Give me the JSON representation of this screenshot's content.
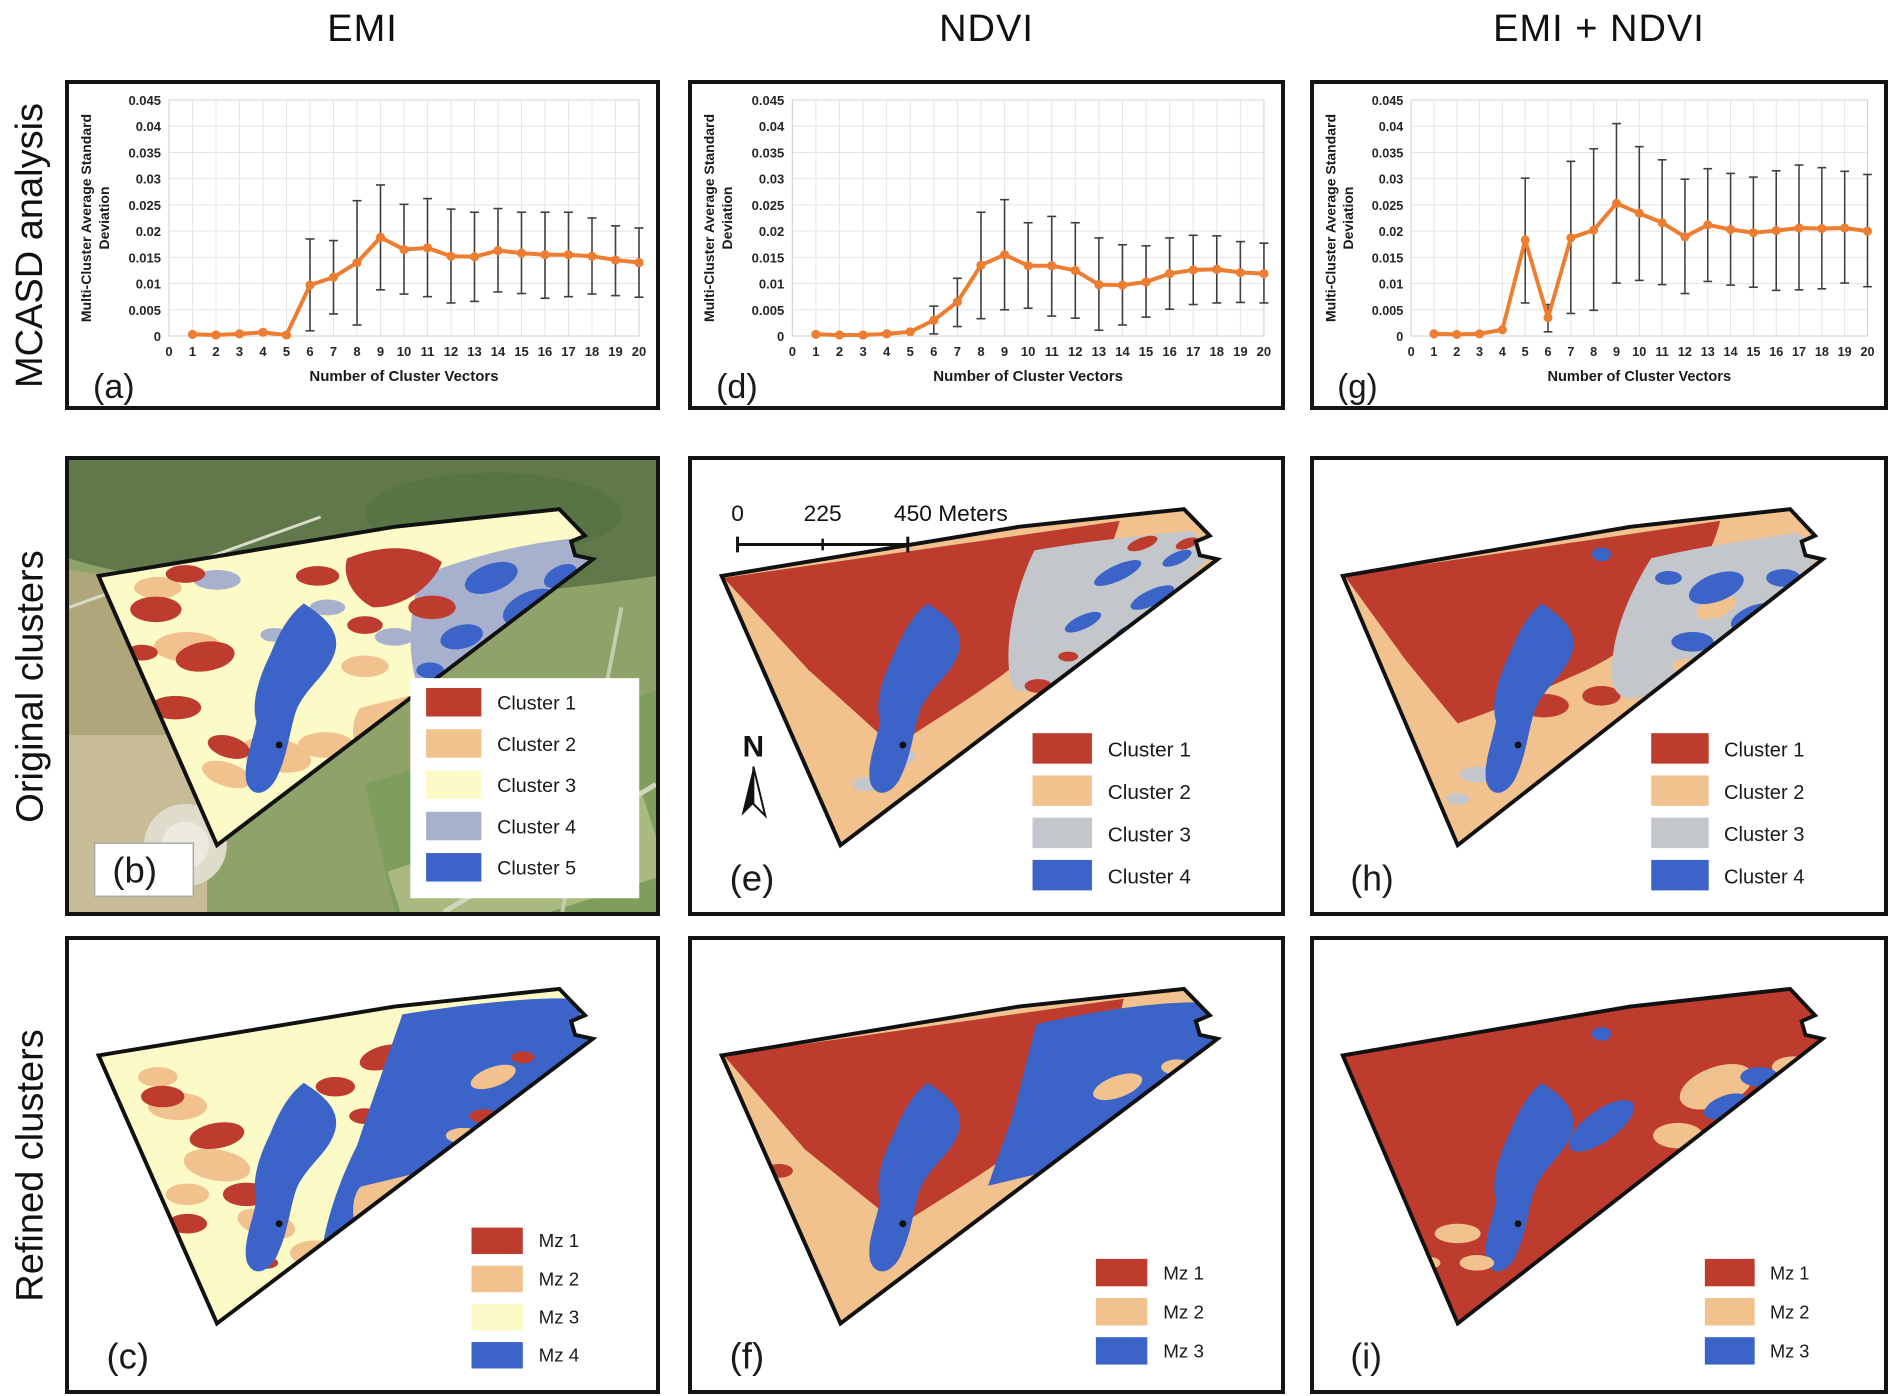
{
  "figure": {
    "column_titles": [
      "EMI",
      "NDVI",
      "EMI + NDVI"
    ],
    "row_titles": [
      "MCASD analysis",
      "Original clusters",
      "Refined clusters"
    ]
  },
  "colors": {
    "line_orange": "#ED7D31",
    "error_bar": "#3F3F3F",
    "cluster_red": "#BD3C2D",
    "cluster_tan": "#F1C18E",
    "cluster_yellow": "#FCFAC6",
    "cluster_slate": "#A7B1CE",
    "cluster_gray": "#C3C7CC",
    "cluster_blue": "#3C64C8",
    "panel_border": "#1A1A1A"
  },
  "chart_data": [
    {
      "type": "line",
      "label": "(a)",
      "column": "EMI",
      "xlabel": "Number of Cluster Vectors",
      "ylabel_lines": [
        "Multi-Cluster Average Standard",
        "Deviation"
      ],
      "xlim": [
        0,
        20
      ],
      "ylim": [
        0,
        0.045
      ],
      "ytick_step": 0.005,
      "xtick_step": 1,
      "grid": true,
      "x": [
        1,
        2,
        3,
        4,
        5,
        6,
        7,
        8,
        9,
        10,
        11,
        12,
        13,
        14,
        15,
        16,
        17,
        18,
        19,
        20
      ],
      "values": [
        0.0003,
        0.0002,
        0.0004,
        0.0007,
        0.0002,
        0.0097,
        0.0112,
        0.014,
        0.0188,
        0.0165,
        0.0168,
        0.0152,
        0.0151,
        0.0163,
        0.0158,
        0.0155,
        0.0155,
        0.0152,
        0.0145,
        0.014
      ],
      "err_low": [
        null,
        null,
        null,
        null,
        null,
        0.001,
        0.0042,
        0.0021,
        0.0088,
        0.008,
        0.0075,
        0.0063,
        0.0066,
        0.0084,
        0.0081,
        0.0072,
        0.0075,
        0.008,
        0.0077,
        0.0074
      ],
      "err_high": [
        null,
        null,
        null,
        null,
        null,
        0.0185,
        0.0182,
        0.0258,
        0.0288,
        0.0251,
        0.0262,
        0.0242,
        0.0236,
        0.0243,
        0.0236,
        0.0236,
        0.0236,
        0.0225,
        0.021,
        0.0206
      ]
    },
    {
      "type": "line",
      "label": "(d)",
      "column": "NDVI",
      "xlabel": "Number of Cluster Vectors",
      "ylabel_lines": [
        "Multi-Cluster Average Standard",
        "Deviation"
      ],
      "xlim": [
        0,
        20
      ],
      "ylim": [
        0,
        0.045
      ],
      "ytick_step": 0.005,
      "xtick_step": 1,
      "grid": true,
      "x": [
        1,
        2,
        3,
        4,
        5,
        6,
        7,
        8,
        9,
        10,
        11,
        12,
        13,
        14,
        15,
        16,
        17,
        18,
        19,
        20
      ],
      "values": [
        0.0003,
        0.0002,
        0.0002,
        0.0004,
        0.0008,
        0.003,
        0.0065,
        0.0135,
        0.0155,
        0.0134,
        0.0134,
        0.0125,
        0.0098,
        0.0097,
        0.0103,
        0.0119,
        0.0126,
        0.0127,
        0.0121,
        0.0119
      ],
      "err_low": [
        null,
        null,
        null,
        null,
        null,
        0.0004,
        0.0018,
        0.0033,
        0.005,
        0.0053,
        0.0038,
        0.0034,
        0.0011,
        0.0021,
        0.0036,
        0.0051,
        0.006,
        0.0063,
        0.0064,
        0.0063
      ],
      "err_high": [
        null,
        null,
        null,
        null,
        null,
        0.0057,
        0.011,
        0.0236,
        0.026,
        0.0216,
        0.0228,
        0.0216,
        0.0187,
        0.0174,
        0.0172,
        0.0187,
        0.0192,
        0.0191,
        0.018,
        0.0177
      ]
    },
    {
      "type": "line",
      "label": "(g)",
      "column": "EMI + NDVI",
      "xlabel": "Number of Cluster Vectors",
      "ylabel_lines": [
        "Multi-Cluster Average Standard",
        "Deviation"
      ],
      "xlim": [
        0,
        20
      ],
      "ylim": [
        0,
        0.045
      ],
      "ytick_step": 0.005,
      "xtick_step": 1,
      "grid": true,
      "x": [
        1,
        2,
        3,
        4,
        5,
        6,
        7,
        8,
        9,
        10,
        11,
        12,
        13,
        14,
        15,
        16,
        17,
        18,
        19,
        20
      ],
      "values": [
        0.0004,
        0.0003,
        0.0004,
        0.0012,
        0.0183,
        0.0035,
        0.0187,
        0.0202,
        0.0253,
        0.0234,
        0.0216,
        0.0189,
        0.0212,
        0.0203,
        0.0197,
        0.0201,
        0.0206,
        0.0205,
        0.0206,
        0.02
      ],
      "err_low": [
        null,
        null,
        null,
        null,
        0.0063,
        0.0008,
        0.0043,
        0.0049,
        0.0101,
        0.0106,
        0.0098,
        0.0081,
        0.0104,
        0.0097,
        0.0093,
        0.0087,
        0.0088,
        0.009,
        0.0101,
        0.0094
      ],
      "err_high": [
        null,
        null,
        null,
        null,
        0.0301,
        0.006,
        0.0333,
        0.0357,
        0.0405,
        0.0361,
        0.0336,
        0.0299,
        0.0319,
        0.031,
        0.0303,
        0.0315,
        0.0326,
        0.0321,
        0.0314,
        0.0308
      ]
    }
  ],
  "maps": {
    "b": {
      "label": "(b)",
      "background": "satellite",
      "legend": [
        {
          "label": "Cluster 1",
          "color": "#BD3C2D"
        },
        {
          "label": "Cluster 2",
          "color": "#F1C18E"
        },
        {
          "label": "Cluster 3",
          "color": "#FCFAC6"
        },
        {
          "label": "Cluster 4",
          "color": "#A7B1CE"
        },
        {
          "label": "Cluster 5",
          "color": "#3C64C8"
        }
      ]
    },
    "e": {
      "label": "(e)",
      "background": "white",
      "scalebar_labels": [
        "0",
        "225",
        "450 Meters"
      ],
      "north_label": "N",
      "legend": [
        {
          "label": "Cluster 1",
          "color": "#BD3C2D"
        },
        {
          "label": "Cluster 2",
          "color": "#F1C18E"
        },
        {
          "label": "Cluster 3",
          "color": "#C3C7CC"
        },
        {
          "label": "Cluster 4",
          "color": "#3C64C8"
        }
      ]
    },
    "h": {
      "label": "(h)",
      "background": "white",
      "legend": [
        {
          "label": "Cluster 1",
          "color": "#BD3C2D"
        },
        {
          "label": "Cluster 2",
          "color": "#F1C18E"
        },
        {
          "label": "Cluster 3",
          "color": "#C3C7CC"
        },
        {
          "label": "Cluster 4",
          "color": "#3C64C8"
        }
      ]
    },
    "c": {
      "label": "(c)",
      "background": "white",
      "legend": [
        {
          "label": "Mz 1",
          "color": "#BD3C2D"
        },
        {
          "label": "Mz 2",
          "color": "#F1C18E"
        },
        {
          "label": "Mz 3",
          "color": "#FCFAC6"
        },
        {
          "label": "Mz 4",
          "color": "#3C64C8"
        }
      ]
    },
    "f": {
      "label": "(f)",
      "background": "white",
      "legend": [
        {
          "label": "Mz 1",
          "color": "#BD3C2D"
        },
        {
          "label": "Mz 2",
          "color": "#F1C18E"
        },
        {
          "label": "Mz 3",
          "color": "#3C64C8"
        }
      ]
    },
    "i": {
      "label": "(i)",
      "background": "white",
      "legend": [
        {
          "label": "Mz 1",
          "color": "#BD3C2D"
        },
        {
          "label": "Mz 2",
          "color": "#F1C18E"
        },
        {
          "label": "Mz 3",
          "color": "#3C64C8"
        }
      ]
    }
  }
}
